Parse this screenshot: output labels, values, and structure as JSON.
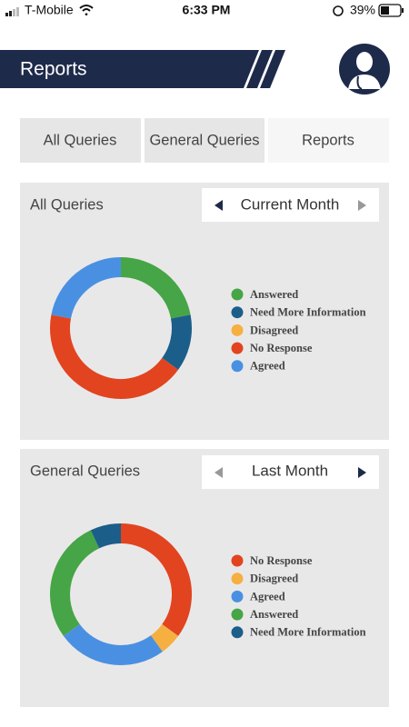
{
  "status_bar": {
    "carrier": "T-Mobile",
    "time": "6:33 PM",
    "battery": "39%"
  },
  "header": {
    "title": "Reports"
  },
  "tabs": [
    "All Queries",
    "General Queries",
    "Reports"
  ],
  "chart_data": [
    {
      "type": "pie",
      "donut": true,
      "title": "All Queries",
      "period": "Current Month",
      "categories": [
        "Answered",
        "Need More Information",
        "Disagreed",
        "No Response",
        "Agreed"
      ],
      "values": [
        22,
        13,
        0,
        43,
        22
      ],
      "colors": [
        "#46a546",
        "#1b5e8a",
        "#f5b041",
        "#e1441f",
        "#4a90e2"
      ]
    },
    {
      "type": "pie",
      "donut": true,
      "title": "General Queries",
      "period": "Last Month",
      "categories": [
        "No Response",
        "Disagreed",
        "Agreed",
        "Answered",
        "Need More Information"
      ],
      "values": [
        35,
        5,
        25,
        28,
        7
      ],
      "colors": [
        "#e1441f",
        "#f5b041",
        "#4a90e2",
        "#46a546",
        "#1b5e8a"
      ]
    }
  ]
}
